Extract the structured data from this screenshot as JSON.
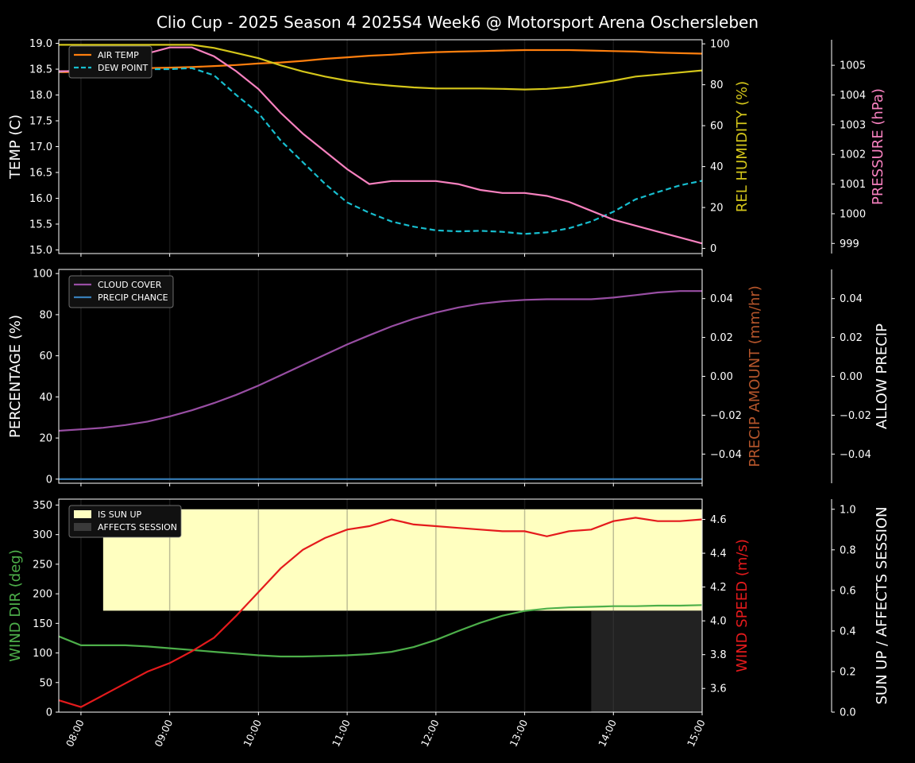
{
  "title": "Clio Cup - 2025 Season 4 2025S4 Week6 @ Motorsport Arena Oschersleben",
  "x_ticks": [
    "08:00",
    "09:00",
    "10:00",
    "11:00",
    "12:00",
    "13:00",
    "14:00",
    "15:00"
  ],
  "chart_data": [
    {
      "type": "line",
      "panel": "top",
      "x": [
        7.75,
        8.0,
        8.25,
        8.5,
        8.75,
        9.0,
        9.25,
        9.5,
        9.75,
        10.0,
        10.25,
        10.5,
        10.75,
        11.0,
        11.25,
        11.5,
        11.75,
        12.0,
        12.25,
        12.5,
        12.75,
        13.0,
        13.25,
        13.5,
        13.75,
        14.0,
        14.25,
        14.5,
        14.75,
        15.0
      ],
      "xlim": [
        7.75,
        15.0
      ],
      "ylabel": "TEMP (C)",
      "ylim": [
        14.93,
        19.07
      ],
      "yticks": [
        "15.0",
        "15.5",
        "16.0",
        "16.5",
        "17.0",
        "17.5",
        "18.0",
        "18.5",
        "19.0"
      ],
      "ylabel2": "REL HUMIDITY (%)",
      "y2lim": [
        -2.5,
        102
      ],
      "y2ticks": [
        "0",
        "20",
        "40",
        "60",
        "80",
        "100"
      ],
      "ylabel3": "PRESSURE (hPa)",
      "y3lim": [
        998.66,
        1005.86
      ],
      "y3ticks": [
        "999",
        "1000",
        "1001",
        "1002",
        "1003",
        "1004",
        "1005"
      ],
      "legend": "top-left",
      "series": [
        {
          "name": "AIR TEMP",
          "axis": "left",
          "color": "#ff7f0e",
          "style": "solid",
          "values": [
            18.44,
            18.45,
            18.49,
            18.51,
            18.52,
            18.53,
            18.54,
            18.56,
            18.58,
            18.61,
            18.63,
            18.66,
            18.7,
            18.73,
            18.76,
            18.78,
            18.81,
            18.83,
            18.84,
            18.85,
            18.86,
            18.87,
            18.87,
            18.87,
            18.86,
            18.85,
            18.84,
            18.82,
            18.81,
            18.8
          ]
        },
        {
          "name": "DEW POINT",
          "axis": "left",
          "color": "#17becf",
          "style": "dashed",
          "values": [
            18.45,
            18.48,
            18.49,
            18.5,
            18.5,
            18.5,
            18.52,
            18.38,
            18.0,
            17.65,
            17.12,
            16.7,
            16.28,
            15.92,
            15.72,
            15.55,
            15.45,
            15.38,
            15.36,
            15.37,
            15.35,
            15.31,
            15.34,
            15.42,
            15.55,
            15.74,
            15.98,
            16.12,
            16.25,
            16.34
          ]
        },
        {
          "name": "REL HUMIDITY",
          "axis": "right",
          "color": "#d4c61a",
          "style": "solid",
          "values": [
            99.5,
            99.5,
            99.5,
            99.5,
            99.5,
            99.5,
            99.5,
            98.0,
            95.5,
            93.0,
            89.5,
            86.5,
            84.0,
            82.0,
            80.5,
            79.5,
            78.7,
            78.2,
            78.2,
            78.2,
            78.0,
            77.7,
            78.0,
            78.8,
            80.3,
            82.0,
            84.0,
            85.0,
            86.0,
            87.0
          ]
        },
        {
          "name": "PRESSURE",
          "axis": "right3",
          "color": "#f781bf",
          "style": "solid",
          "values": [
            1004.8,
            1004.8,
            1005.0,
            1005.2,
            1005.4,
            1005.6,
            1005.6,
            1005.3,
            1004.8,
            1004.2,
            1003.4,
            1002.7,
            1002.1,
            1001.5,
            1001.0,
            1001.1,
            1001.1,
            1001.1,
            1001.0,
            1000.8,
            1000.7,
            1000.7,
            1000.6,
            1000.4,
            1000.1,
            999.8,
            999.6,
            999.4,
            999.2,
            999.0
          ]
        }
      ]
    },
    {
      "type": "line",
      "panel": "middle",
      "x": [
        7.75,
        8.0,
        8.25,
        8.5,
        8.75,
        9.0,
        9.25,
        9.5,
        9.75,
        10.0,
        10.25,
        10.5,
        10.75,
        11.0,
        11.25,
        11.5,
        11.75,
        12.0,
        12.25,
        12.5,
        12.75,
        13.0,
        13.25,
        13.5,
        13.75,
        14.0,
        14.25,
        14.5,
        14.75,
        15.0
      ],
      "xlim": [
        7.75,
        15.0
      ],
      "ylabel": "PERCENTAGE (%)",
      "ylim": [
        -2,
        102
      ],
      "yticks": [
        "0",
        "20",
        "40",
        "60",
        "80",
        "100"
      ],
      "ylabel2": "PRECIP AMOUNT (mm/hr)",
      "y2lim": [
        -0.055,
        0.055
      ],
      "y2ticks": [
        "−0.04",
        "−0.02",
        "0.00",
        "0.02",
        "0.04"
      ],
      "ylabel3": "ALLOW PRECIP",
      "y3lim": [
        -0.055,
        0.055
      ],
      "y3ticks": [
        "−0.04",
        "−0.02",
        "0.00",
        "0.02",
        "0.04"
      ],
      "legend": "top-left",
      "series": [
        {
          "name": "CLOUD COVER",
          "color": "#984ea3",
          "values": [
            23.5,
            24.2,
            25.0,
            26.3,
            28.0,
            30.5,
            33.5,
            37.0,
            41.0,
            45.5,
            50.5,
            55.5,
            60.5,
            65.5,
            70.0,
            74.3,
            78.0,
            81.0,
            83.5,
            85.3,
            86.5,
            87.2,
            87.5,
            87.5,
            87.5,
            88.3,
            89.5,
            90.8,
            91.5,
            91.5
          ]
        },
        {
          "name": "PRECIP CHANCE",
          "color": "#377eb8",
          "values": [
            0,
            0,
            0,
            0,
            0,
            0,
            0,
            0,
            0,
            0,
            0,
            0,
            0,
            0,
            0,
            0,
            0,
            0,
            0,
            0,
            0,
            0,
            0,
            0,
            0,
            0,
            0,
            0,
            0,
            0
          ]
        }
      ]
    },
    {
      "type": "line",
      "panel": "bottom",
      "x": [
        7.75,
        8.0,
        8.25,
        8.5,
        8.75,
        9.0,
        9.25,
        9.5,
        9.75,
        10.0,
        10.25,
        10.5,
        10.75,
        11.0,
        11.25,
        11.5,
        11.75,
        12.0,
        12.25,
        12.5,
        12.75,
        13.0,
        13.25,
        13.5,
        13.75,
        14.0,
        14.25,
        14.5,
        14.75,
        15.0
      ],
      "xlim": [
        7.75,
        15.0
      ],
      "ylabel": "WIND DIR (deg)",
      "ylim": [
        0,
        360
      ],
      "yticks": [
        "0",
        "50",
        "100",
        "150",
        "200",
        "250",
        "300",
        "350"
      ],
      "ylabel2": "WIND SPEED (m/s)",
      "y2lim": [
        3.46,
        4.72
      ],
      "y2ticks": [
        "3.6",
        "3.8",
        "4.0",
        "4.2",
        "4.4",
        "4.6"
      ],
      "ylabel3": "SUN UP / AFFECTS SESSION",
      "y3lim": [
        0.0,
        1.05
      ],
      "y3ticks": [
        "0.0",
        "0.2",
        "0.4",
        "0.6",
        "0.8",
        "1.0"
      ],
      "legend": "top-left",
      "sun_up": {
        "name": "IS SUN UP",
        "start": 8.25,
        "end": 15.0,
        "value": 1.0,
        "color": "#ffffc0"
      },
      "affects_session": {
        "name": "AFFECTS SESSION",
        "start": 13.75,
        "end": 15.0,
        "value": 1.0,
        "color": "#222222"
      },
      "series": [
        {
          "name": "WIND DIR",
          "axis": "left",
          "color": "#4daf4a",
          "values": [
            128,
            113,
            113,
            113,
            111,
            108,
            105,
            102,
            99,
            96,
            94,
            94,
            95,
            96,
            98,
            102,
            110,
            122,
            137,
            151,
            163,
            171,
            175,
            177,
            178,
            179,
            179,
            180,
            180,
            181
          ]
        },
        {
          "name": "WIND SPEED",
          "axis": "right",
          "color": "#e41a1c",
          "values": [
            3.53,
            3.49,
            3.56,
            3.63,
            3.7,
            3.75,
            3.82,
            3.9,
            4.03,
            4.17,
            4.31,
            4.42,
            4.49,
            4.54,
            4.56,
            4.6,
            4.57,
            4.56,
            4.55,
            4.54,
            4.53,
            4.53,
            4.5,
            4.53,
            4.54,
            4.59,
            4.61,
            4.59,
            4.59,
            4.6
          ]
        }
      ]
    }
  ]
}
